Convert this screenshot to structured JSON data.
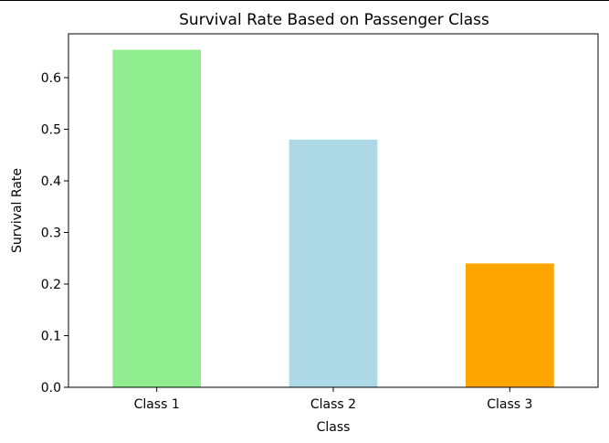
{
  "chart_data": {
    "type": "bar",
    "title": "Survival Rate Based on Passenger Class",
    "xlabel": "Class",
    "ylabel": "Survival Rate",
    "categories": [
      "Class 1",
      "Class 2",
      "Class 3"
    ],
    "values": [
      0.654,
      0.48,
      0.24
    ],
    "colors": [
      "#90ee90",
      "#add8e6",
      "#ffa500"
    ],
    "ylim": [
      0,
      0.685
    ],
    "yticks": [
      0.0,
      0.1,
      0.2,
      0.3,
      0.4,
      0.5,
      0.6
    ],
    "ytick_labels": [
      "0.0",
      "0.1",
      "0.2",
      "0.3",
      "0.4",
      "0.5",
      "0.6"
    ],
    "grid": false,
    "legend": "none"
  }
}
